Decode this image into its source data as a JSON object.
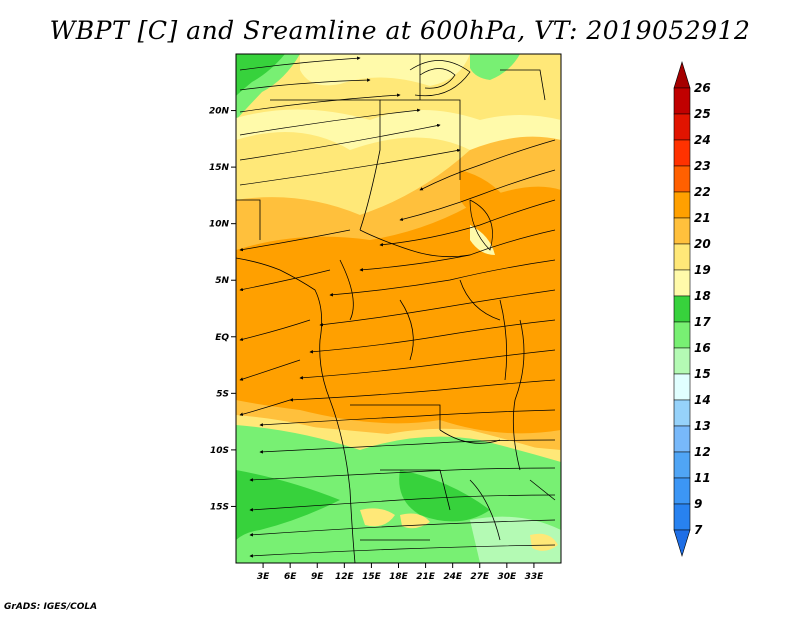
{
  "title": "WBPT [C] and Sreamline at 600hPa, VT: 2019052912",
  "credit": "GrADS: IGES/COLA",
  "map": {
    "lon_range": [
      0,
      36
    ],
    "lat_range": [
      -20,
      25
    ],
    "x_ticks": [
      {
        "value": 3,
        "label": "3E"
      },
      {
        "value": 6,
        "label": "6E"
      },
      {
        "value": 9,
        "label": "9E"
      },
      {
        "value": 12,
        "label": "12E"
      },
      {
        "value": 15,
        "label": "15E"
      },
      {
        "value": 18,
        "label": "18E"
      },
      {
        "value": 21,
        "label": "21E"
      },
      {
        "value": 24,
        "label": "24E"
      },
      {
        "value": 27,
        "label": "27E"
      },
      {
        "value": 30,
        "label": "30E"
      },
      {
        "value": 33,
        "label": "33E"
      }
    ],
    "y_ticks": [
      {
        "value": 20,
        "label": "20N"
      },
      {
        "value": 15,
        "label": "15N"
      },
      {
        "value": 10,
        "label": "10N"
      },
      {
        "value": 5,
        "label": "5N"
      },
      {
        "value": 0,
        "label": "EQ"
      },
      {
        "value": -5,
        "label": "5S"
      },
      {
        "value": -10,
        "label": "10S"
      },
      {
        "value": -15,
        "label": "15S"
      }
    ]
  },
  "colorbar": {
    "levels": [
      "7",
      "9",
      "11",
      "12",
      "13",
      "14",
      "15",
      "16",
      "17",
      "18",
      "19",
      "20",
      "21",
      "22",
      "23",
      "24",
      "25",
      "26"
    ],
    "colors": [
      "#1e6ee6",
      "#2882f0",
      "#3c96f5",
      "#50a5f5",
      "#78b9fa",
      "#96d2fa",
      "#e1ffff",
      "#b4fab4",
      "#78f073",
      "#37d23c",
      "#fffaaa",
      "#ffe878",
      "#ffc03c",
      "#ffa000",
      "#ff6000",
      "#ff3200",
      "#e11400",
      "#c00000",
      "#a50000"
    ]
  }
}
